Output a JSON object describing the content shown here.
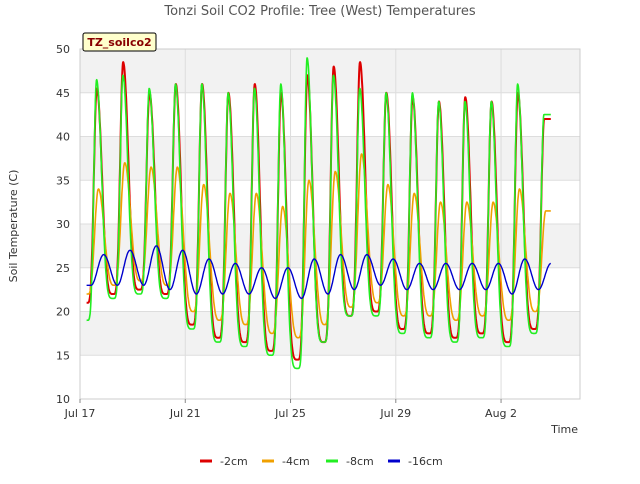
{
  "chart_data": {
    "type": "line",
    "title": "Tonzi Soil CO2 Profile: Tree (West) Temperatures",
    "badge": "TZ_soilco2",
    "xlabel": "Time",
    "ylabel": "Soil Temperature (C)",
    "ylim": [
      10,
      50
    ],
    "yticks": [
      10,
      15,
      20,
      25,
      30,
      35,
      40,
      45,
      50
    ],
    "xlim": [
      "2022-07-17",
      "2022-08-05"
    ],
    "xticks": [
      {
        "label": "Jul 17",
        "value": "2022-07-17"
      },
      {
        "label": "Jul 21",
        "value": "2022-07-21"
      },
      {
        "label": "Jul 25",
        "value": "2022-07-25"
      },
      {
        "label": "Jul 29",
        "value": "2022-07-29"
      },
      {
        "label": "Aug 2",
        "value": "2022-08-02"
      }
    ],
    "grid": true,
    "legend_position": "bottom",
    "days": [
      "2022-07-17",
      "2022-07-18",
      "2022-07-19",
      "2022-07-20",
      "2022-07-21",
      "2022-07-22",
      "2022-07-23",
      "2022-07-24",
      "2022-07-25",
      "2022-07-26",
      "2022-07-27",
      "2022-07-28",
      "2022-07-29",
      "2022-07-30",
      "2022-07-31",
      "2022-08-01",
      "2022-08-02",
      "2022-08-03"
    ],
    "series": [
      {
        "name": "-2cm",
        "color": "#dd0000",
        "daily_max": [
          45.5,
          48.5,
          45.0,
          46.0,
          46.0,
          45.0,
          46.0,
          45.0,
          47.0,
          48.0,
          48.5,
          45.0,
          44.5,
          44.0,
          44.5,
          44.0,
          45.0,
          42.0
        ],
        "daily_min": [
          21.0,
          22.0,
          22.5,
          22.0,
          18.5,
          17.0,
          16.5,
          15.5,
          14.5,
          16.5,
          19.5,
          20.0,
          18.0,
          17.5,
          17.0,
          17.5,
          16.5,
          18.0
        ]
      },
      {
        "name": "-4cm",
        "color": "#f0a000",
        "daily_max": [
          34.0,
          37.0,
          36.5,
          36.5,
          34.5,
          33.5,
          33.5,
          32.0,
          35.0,
          36.0,
          38.0,
          34.5,
          33.5,
          32.5,
          32.5,
          32.5,
          34.0,
          31.5
        ],
        "daily_min": [
          22.0,
          23.0,
          23.5,
          23.0,
          20.0,
          19.0,
          18.5,
          17.5,
          17.0,
          18.5,
          20.5,
          21.0,
          19.5,
          19.5,
          19.0,
          19.5,
          19.0,
          20.0
        ]
      },
      {
        "name": "-8cm",
        "color": "#22ee22",
        "daily_max": [
          46.5,
          47.0,
          45.5,
          46.0,
          46.0,
          45.0,
          45.5,
          46.0,
          49.0,
          47.0,
          45.5,
          45.0,
          45.0,
          44.0,
          44.0,
          44.0,
          46.0,
          42.5
        ],
        "daily_min": [
          19.0,
          21.5,
          22.0,
          21.5,
          18.0,
          16.5,
          16.0,
          15.0,
          13.5,
          16.5,
          19.5,
          19.5,
          17.5,
          17.0,
          16.5,
          17.0,
          16.0,
          17.5
        ]
      },
      {
        "name": "-16cm",
        "color": "#0000cc",
        "daily_max": [
          26.5,
          27.0,
          27.5,
          27.0,
          26.0,
          25.5,
          25.0,
          25.0,
          26.0,
          26.5,
          26.5,
          26.0,
          25.5,
          25.5,
          25.5,
          25.5,
          26.0,
          25.5
        ],
        "daily_min": [
          23.0,
          23.0,
          23.0,
          22.5,
          22.0,
          22.0,
          22.0,
          21.5,
          21.5,
          22.0,
          22.5,
          23.0,
          22.5,
          22.5,
          22.5,
          22.5,
          22.0,
          22.5
        ]
      }
    ]
  }
}
